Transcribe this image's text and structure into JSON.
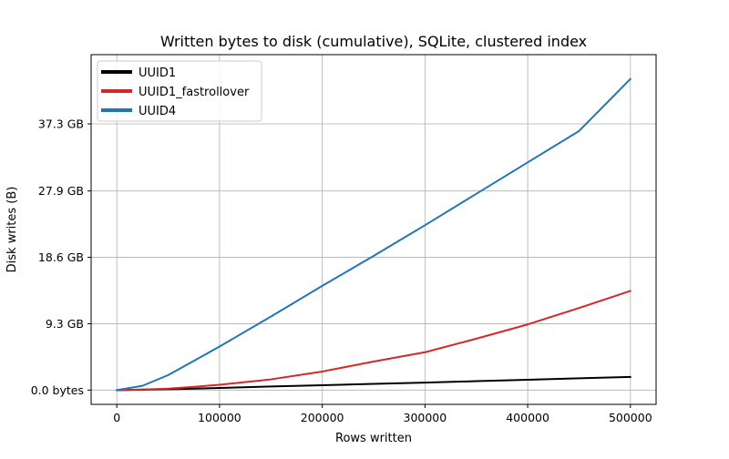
{
  "chart_data": {
    "type": "line",
    "title": "Written bytes to disk (cumulative), SQLite, clustered index",
    "xlabel": "Rows written",
    "ylabel": "Disk writes (B)",
    "xlim": [
      -25000,
      525000
    ],
    "ylim_gb": [
      -2.0,
      47.0
    ],
    "x_ticks": [
      0,
      100000,
      200000,
      300000,
      400000,
      500000
    ],
    "x_tick_labels": [
      "0",
      "100000",
      "200000",
      "300000",
      "400000",
      "500000"
    ],
    "y_ticks_gb": [
      0.0,
      9.3,
      18.6,
      27.9,
      37.3
    ],
    "y_tick_labels": [
      "0.0 bytes",
      "9.3 GB",
      "18.6 GB",
      "27.9 GB",
      "37.3 GB"
    ],
    "grid": true,
    "legend_placement": "top-left",
    "x": [
      0,
      25000,
      50000,
      75000,
      100000,
      150000,
      200000,
      250000,
      300000,
      350000,
      400000,
      450000,
      500000
    ],
    "series": [
      {
        "name": "UUID1",
        "color": "#000000",
        "values_gb": [
          0.0,
          0.05,
          0.12,
          0.2,
          0.3,
          0.5,
          0.68,
          0.87,
          1.05,
          1.25,
          1.45,
          1.65,
          1.85
        ]
      },
      {
        "name": "UUID1_fastrollover",
        "color": "#d62728",
        "values_gb": [
          0.0,
          0.08,
          0.2,
          0.45,
          0.75,
          1.5,
          2.6,
          4.0,
          5.3,
          7.2,
          9.2,
          11.5,
          13.9
        ]
      },
      {
        "name": "UUID4",
        "color": "#1f77b4",
        "values_gb": [
          0.0,
          0.6,
          2.1,
          4.1,
          6.1,
          10.3,
          14.6,
          18.8,
          23.1,
          27.5,
          31.9,
          36.3,
          43.6
        ]
      }
    ]
  }
}
